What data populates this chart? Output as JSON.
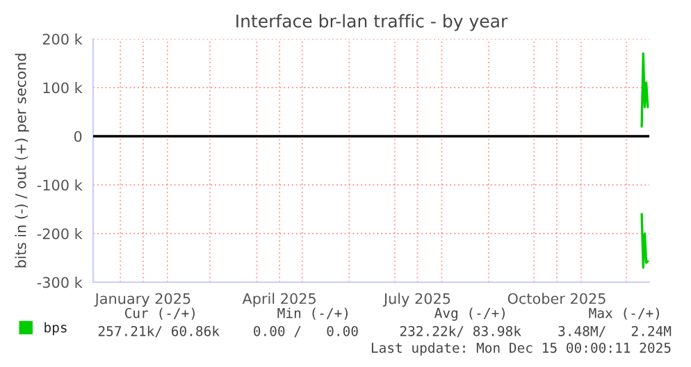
{
  "chart_data": {
    "type": "line",
    "title": "Interface br-lan traffic - by year",
    "ylabel": "bits in (-) / out (+) per second",
    "x": [
      "2025-12-11",
      "2025-12-12",
      "2025-12-13",
      "2025-12-14",
      "2025-12-15"
    ],
    "series": [
      {
        "name": "bps",
        "color": "#00cc00",
        "values": [
          20000,
          170000,
          60000,
          110000,
          60000
        ]
      },
      {
        "color": "#00cc00",
        "values": [
          -160000,
          -270000,
          -200000,
          -260000,
          -257000
        ]
      }
    ],
    "xlim": [
      "2024-12-14",
      "2025-12-16"
    ],
    "xticks": [
      {
        "value": "2025-01-01",
        "label": null
      },
      {
        "value": "2025-01-16",
        "label": "January 2025"
      },
      {
        "value": "2025-02-01",
        "label": null
      },
      {
        "value": "2025-03-01",
        "label": null
      },
      {
        "value": "2025-04-01",
        "label": null
      },
      {
        "value": "2025-04-16",
        "label": "April 2025"
      },
      {
        "value": "2025-05-01",
        "label": null
      },
      {
        "value": "2025-06-01",
        "label": null
      },
      {
        "value": "2025-07-01",
        "label": null
      },
      {
        "value": "2025-07-16",
        "label": "July 2025"
      },
      {
        "value": "2025-08-01",
        "label": null
      },
      {
        "value": "2025-09-01",
        "label": null
      },
      {
        "value": "2025-10-01",
        "label": null
      },
      {
        "value": "2025-10-16",
        "label": "October 2025"
      },
      {
        "value": "2025-11-01",
        "label": null
      },
      {
        "value": "2025-12-01",
        "label": null
      }
    ],
    "ylim": [
      -300000,
      200000
    ],
    "yticks": [
      {
        "value": -300000,
        "label": "-300 k"
      },
      {
        "value": -200000,
        "label": "-200 k"
      },
      {
        "value": -100000,
        "label": "-100 k"
      },
      {
        "value": 0,
        "label": "0"
      },
      {
        "value": 100000,
        "label": "100 k"
      },
      {
        "value": 200000,
        "label": "200 k"
      }
    ],
    "ref_lines": [
      {
        "axis": "y",
        "value": 0,
        "color": "#000000"
      }
    ],
    "grid": true,
    "legend": "bottom left",
    "marker": "none",
    "line_style": "solid",
    "annotations": [
      "Cur (-/+)",
      "Min (-/+)",
      "Avg (-/+)",
      "Max (-/+)",
      "257.21k/ 60.86k",
      "0.00 /   0.00",
      "232.22k/ 83.98k",
      "3.48M/   2.24M",
      "Last update: Mon Dec 15 00:00:11 2025"
    ]
  }
}
